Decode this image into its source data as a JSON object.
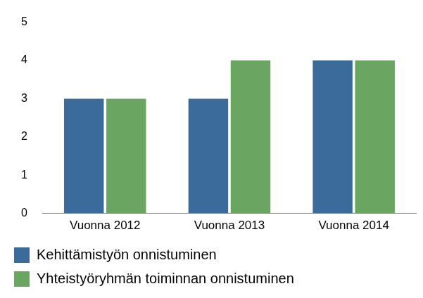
{
  "chart_data": {
    "type": "bar",
    "categories": [
      "Vuonna 2012",
      "Vuonna 2013",
      "Vuonna 2014"
    ],
    "series": [
      {
        "name": "Kehittämistyön onnistuminen",
        "color": "#3b6b9b",
        "values": [
          3,
          3,
          4
        ]
      },
      {
        "name": "Yhteistyöryhmän toiminnan onnistuminen",
        "color": "#6aa561",
        "values": [
          3,
          4,
          4
        ]
      }
    ],
    "ylim": [
      0,
      5
    ],
    "yticks": [
      0,
      1,
      2,
      3,
      4,
      5
    ],
    "grid": false,
    "legend": "bottom"
  }
}
